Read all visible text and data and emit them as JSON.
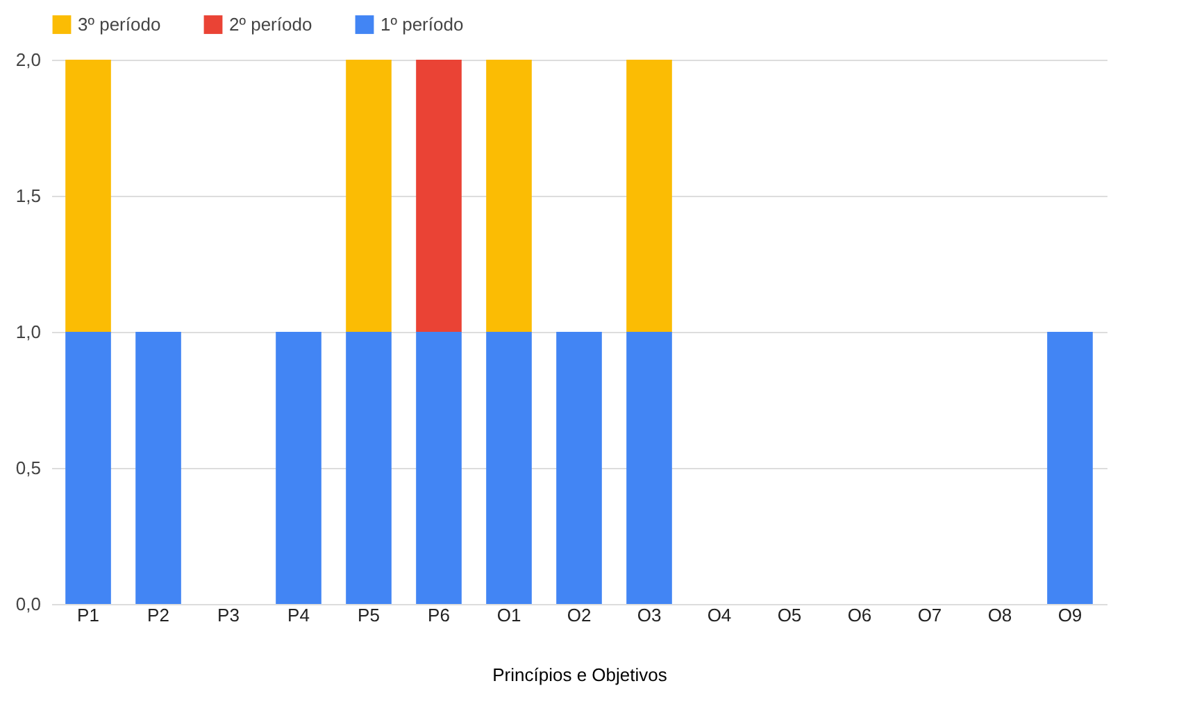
{
  "chart_data": {
    "type": "bar",
    "stacked": true,
    "xlabel": "Princípios e Objetivos",
    "categories": [
      "P1",
      "P2",
      "P3",
      "P4",
      "P5",
      "P6",
      "O1",
      "O2",
      "O3",
      "O4",
      "O5",
      "O6",
      "O7",
      "O8",
      "O9"
    ],
    "series": [
      {
        "name": "1º período",
        "color": "#4285f4",
        "values": [
          1,
          1,
          0,
          1,
          1,
          1,
          1,
          1,
          1,
          0,
          0,
          0,
          0,
          0,
          1
        ]
      },
      {
        "name": "2º período",
        "color": "#ea4335",
        "values": [
          0,
          0,
          0,
          0,
          0,
          1,
          0,
          0,
          0,
          0,
          0,
          0,
          0,
          0,
          0
        ]
      },
      {
        "name": "3º período",
        "color": "#fbbc04",
        "values": [
          1,
          0,
          0,
          0,
          1,
          0,
          1,
          0,
          1,
          0,
          0,
          0,
          0,
          0,
          0
        ]
      }
    ],
    "ylim": [
      0,
      2
    ],
    "yticks": [
      {
        "value": 0,
        "label": "0,0"
      },
      {
        "value": 0.5,
        "label": "0,5"
      },
      {
        "value": 1,
        "label": "1,0"
      },
      {
        "value": 1.5,
        "label": "1,5"
      },
      {
        "value": 2,
        "label": "2,0"
      }
    ],
    "grid": "y",
    "legend": "top"
  }
}
